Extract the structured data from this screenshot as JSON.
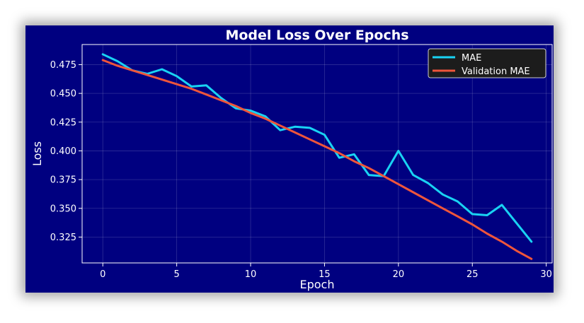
{
  "chart_data": {
    "type": "line",
    "title": "Model Loss Over Epochs",
    "xlabel": "Epoch",
    "ylabel": "Loss",
    "xlim": [
      -1.4,
      30.4
    ],
    "ylim": [
      0.3025,
      0.4925
    ],
    "grid": true,
    "legend_position": "top-right",
    "background_color": "#000080",
    "x_ticks": [
      0,
      5,
      10,
      15,
      20,
      25,
      30
    ],
    "y_ticks": [
      0.325,
      0.35,
      0.375,
      0.4,
      0.425,
      0.45,
      0.475
    ],
    "x_tick_labels": [
      "0",
      "5",
      "10",
      "15",
      "20",
      "25",
      "30"
    ],
    "y_tick_labels": [
      "0.325",
      "0.350",
      "0.375",
      "0.400",
      "0.425",
      "0.450",
      "0.475"
    ],
    "x": [
      0,
      1,
      2,
      3,
      4,
      5,
      6,
      7,
      8,
      9,
      10,
      11,
      12,
      13,
      14,
      15,
      16,
      17,
      18,
      19,
      20,
      21,
      22,
      23,
      24,
      25,
      26,
      27,
      28,
      29
    ],
    "series": [
      {
        "name": "MAE",
        "color": "#19d3f3",
        "values": [
          0.484,
          0.478,
          0.47,
          0.467,
          0.471,
          0.465,
          0.456,
          0.457,
          0.446,
          0.437,
          0.435,
          0.43,
          0.418,
          0.421,
          0.42,
          0.414,
          0.394,
          0.397,
          0.379,
          0.378,
          0.4,
          0.379,
          0.372,
          0.362,
          0.356,
          0.345,
          0.344,
          0.353,
          0.337,
          0.321
        ]
      },
      {
        "name": "Validation MAE",
        "color": "#ef553b",
        "values": [
          0.479,
          0.474,
          0.47,
          0.466,
          0.462,
          0.458,
          0.454,
          0.449,
          0.444,
          0.439,
          0.433,
          0.428,
          0.422,
          0.416,
          0.41,
          0.404,
          0.398,
          0.391,
          0.385,
          0.378,
          0.371,
          0.364,
          0.357,
          0.35,
          0.343,
          0.336,
          0.328,
          0.321,
          0.313,
          0.306
        ]
      }
    ]
  }
}
